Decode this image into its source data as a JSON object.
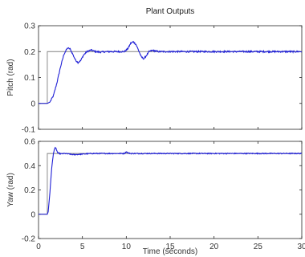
{
  "figure": {
    "title": "Plant Outputs",
    "xlabel": "Time (seconds)"
  },
  "chart_data": [
    {
      "type": "line",
      "title": "Plant Outputs",
      "xlabel": "",
      "ylabel": "Pitch (rad)",
      "xlim": [
        0,
        30
      ],
      "ylim": [
        -0.1,
        0.3
      ],
      "xticks": [
        "0",
        "5",
        "10",
        "15",
        "20",
        "25",
        "30"
      ],
      "yticks": [
        "-0.1",
        "0",
        "0.1",
        "0.2",
        "0.3"
      ],
      "x_tick_labels_visible": false,
      "grid": false,
      "series": [
        {
          "role": "reference",
          "color": "#808080",
          "x": [
            0,
            1,
            1,
            30
          ],
          "y": [
            0,
            0,
            0.2,
            0.2
          ]
        },
        {
          "role": "output",
          "color": "#1f1fd6",
          "noise": 0.003,
          "x": [
            0,
            1.0,
            1.3,
            1.7,
            2.1,
            2.5,
            2.9,
            3.3,
            3.6,
            3.9,
            4.2,
            4.5,
            4.8,
            5.1,
            5.5,
            6.0,
            6.5,
            7.0,
            8.0,
            9.0,
            9.8,
            10.2,
            10.5,
            10.8,
            11.1,
            11.4,
            11.7,
            12.0,
            12.3,
            12.6,
            13.0,
            13.6,
            14.5,
            16,
            20,
            25,
            30
          ],
          "y": [
            0,
            0,
            0.005,
            0.03,
            0.08,
            0.14,
            0.19,
            0.214,
            0.21,
            0.19,
            0.168,
            0.158,
            0.165,
            0.185,
            0.2,
            0.206,
            0.2,
            0.198,
            0.2,
            0.2,
            0.2,
            0.212,
            0.232,
            0.238,
            0.228,
            0.205,
            0.18,
            0.172,
            0.185,
            0.2,
            0.205,
            0.2,
            0.2,
            0.2,
            0.2,
            0.2,
            0.2
          ]
        }
      ]
    },
    {
      "type": "line",
      "title": "",
      "xlabel": "Time (seconds)",
      "ylabel": "Yaw (rad)",
      "xlim": [
        0,
        30
      ],
      "ylim": [
        -0.2,
        0.6
      ],
      "xticks": [
        "0",
        "5",
        "10",
        "15",
        "20",
        "25",
        "30"
      ],
      "yticks": [
        "-0.2",
        "0",
        "0.2",
        "0.4",
        "0.6"
      ],
      "x_tick_labels_visible": true,
      "grid": false,
      "series": [
        {
          "role": "reference",
          "color": "#808080",
          "x": [
            0,
            1,
            1,
            30
          ],
          "y": [
            0,
            0,
            0.5,
            0.5
          ]
        },
        {
          "role": "output",
          "color": "#1f1fd6",
          "noise": 0.004,
          "x": [
            0,
            1.0,
            1.1,
            1.3,
            1.5,
            1.7,
            1.8,
            1.9,
            2.0,
            2.1,
            2.2,
            2.4,
            2.6,
            3.0,
            4.0,
            6.0,
            9.8,
            10.0,
            10.2,
            10.5,
            12,
            15,
            20,
            25,
            30
          ],
          "y": [
            0,
            0,
            0.02,
            0.18,
            0.38,
            0.5,
            0.535,
            0.545,
            0.54,
            0.52,
            0.505,
            0.5,
            0.497,
            0.5,
            0.49,
            0.5,
            0.5,
            0.515,
            0.505,
            0.5,
            0.5,
            0.5,
            0.5,
            0.5,
            0.5
          ]
        }
      ]
    }
  ]
}
